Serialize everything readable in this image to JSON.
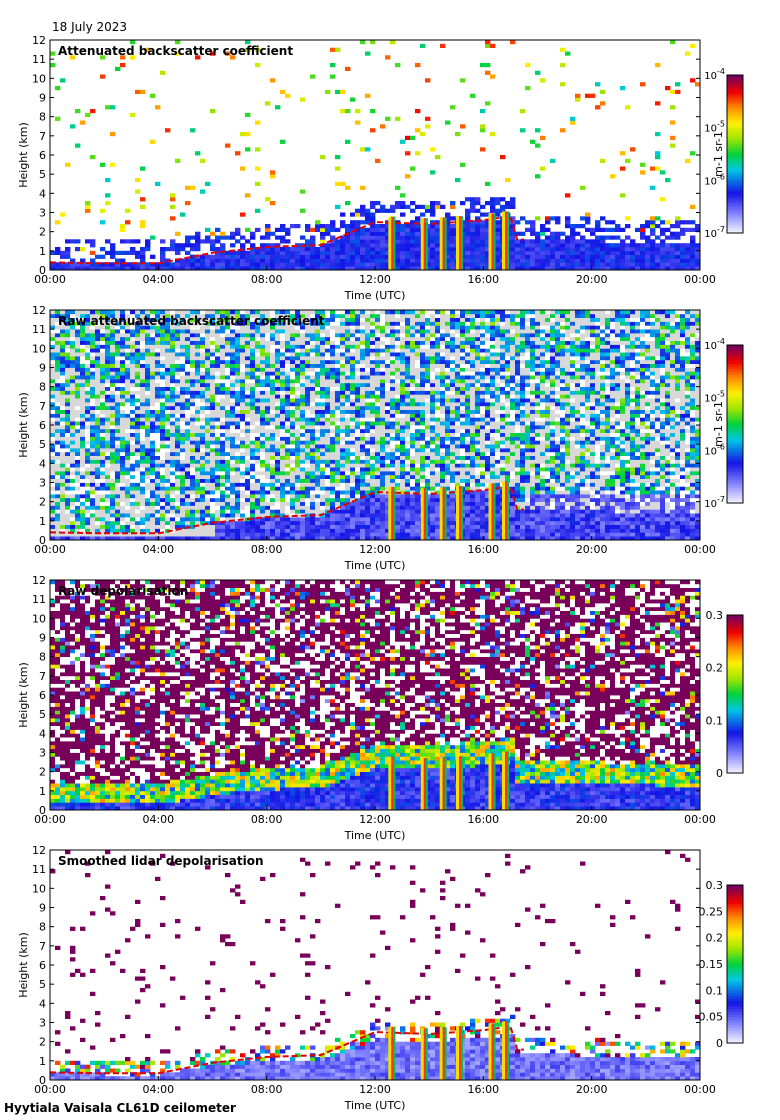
{
  "date": "18 July 2023",
  "footer": "Hyytiala Vaisala CL61D ceilometer",
  "chart_data": [
    {
      "type": "heatmap",
      "title": "Attenuated backscatter coefficient",
      "xlabel": "Time (UTC)",
      "ylabel": "Height (km)",
      "x_ticks": [
        "00:00",
        "04:00",
        "08:00",
        "12:00",
        "16:00",
        "20:00",
        "00:00"
      ],
      "xlim_hours": [
        0,
        24
      ],
      "y_ticks": [
        0,
        1,
        2,
        3,
        4,
        5,
        6,
        7,
        8,
        9,
        10,
        11,
        12
      ],
      "ylim": [
        0,
        12
      ],
      "colorbar": {
        "scale": "log",
        "range": [
          1e-07,
          0.0001
        ],
        "unit": "m-1 sr-1",
        "ticks": [
          {
            "base": "10",
            "exp": "-4"
          },
          {
            "base": "10",
            "exp": "-5"
          },
          {
            "base": "10",
            "exp": "-6"
          },
          {
            "base": "10",
            "exp": "-7"
          }
        ]
      },
      "unit_label": "m-1 sr-1",
      "features": {
        "boundary_layer_top_km": [
          [
            0,
            0.4
          ],
          [
            2,
            0.35
          ],
          [
            4,
            0.35
          ],
          [
            6,
            0.9
          ],
          [
            8,
            1.2
          ],
          [
            10,
            1.3
          ],
          [
            12,
            2.5
          ],
          [
            14,
            2.4
          ],
          [
            16,
            2.6
          ],
          [
            17,
            2.8
          ]
        ],
        "cloud_columns_hours": [
          12.6,
          13.8,
          14.5,
          15.1,
          16.3,
          16.8
        ]
      }
    },
    {
      "type": "heatmap",
      "title": "Raw attenuated backscatter coefficient",
      "xlabel": "Time (UTC)",
      "ylabel": "Height (km)",
      "x_ticks": [
        "00:00",
        "04:00",
        "08:00",
        "12:00",
        "16:00",
        "20:00",
        "00:00"
      ],
      "xlim_hours": [
        0,
        24
      ],
      "y_ticks": [
        0,
        1,
        2,
        3,
        4,
        5,
        6,
        7,
        8,
        9,
        10,
        11,
        12
      ],
      "ylim": [
        0,
        12
      ],
      "colorbar": {
        "scale": "log",
        "range": [
          1e-07,
          0.0001
        ],
        "unit": "m-1 sr-1",
        "ticks": [
          {
            "base": "10",
            "exp": "-4"
          },
          {
            "base": "10",
            "exp": "-5"
          },
          {
            "base": "10",
            "exp": "-6"
          },
          {
            "base": "10",
            "exp": "-7"
          }
        ]
      },
      "unit_label": "m-1 sr-1"
    },
    {
      "type": "heatmap",
      "title": "Raw depolarisation",
      "xlabel": "Time (UTC)",
      "ylabel": "Height (km)",
      "x_ticks": [
        "00:00",
        "04:00",
        "08:00",
        "12:00",
        "16:00",
        "20:00",
        "00:00"
      ],
      "xlim_hours": [
        0,
        24
      ],
      "y_ticks": [
        0,
        1,
        2,
        3,
        4,
        5,
        6,
        7,
        8,
        9,
        10,
        11,
        12
      ],
      "ylim": [
        0,
        12
      ],
      "colorbar": {
        "scale": "linear",
        "range": [
          0,
          0.3
        ],
        "ticks": [
          "0.3",
          "0.2",
          "0.1",
          "0"
        ]
      }
    },
    {
      "type": "heatmap",
      "title": "Smoothed lidar depolarisation",
      "xlabel": "Time (UTC)",
      "ylabel": "Height (km)",
      "x_ticks": [
        "00:00",
        "04:00",
        "08:00",
        "12:00",
        "16:00",
        "20:00",
        "00:00"
      ],
      "xlim_hours": [
        0,
        24
      ],
      "y_ticks": [
        0,
        1,
        2,
        3,
        4,
        5,
        6,
        7,
        8,
        9,
        10,
        11,
        12
      ],
      "ylim": [
        0,
        12
      ],
      "colorbar": {
        "scale": "linear",
        "range": [
          0,
          0.3
        ],
        "ticks": [
          "0.3",
          "0.25",
          "0.2",
          "0.15",
          "0.1",
          "0.05",
          "0"
        ]
      }
    }
  ]
}
